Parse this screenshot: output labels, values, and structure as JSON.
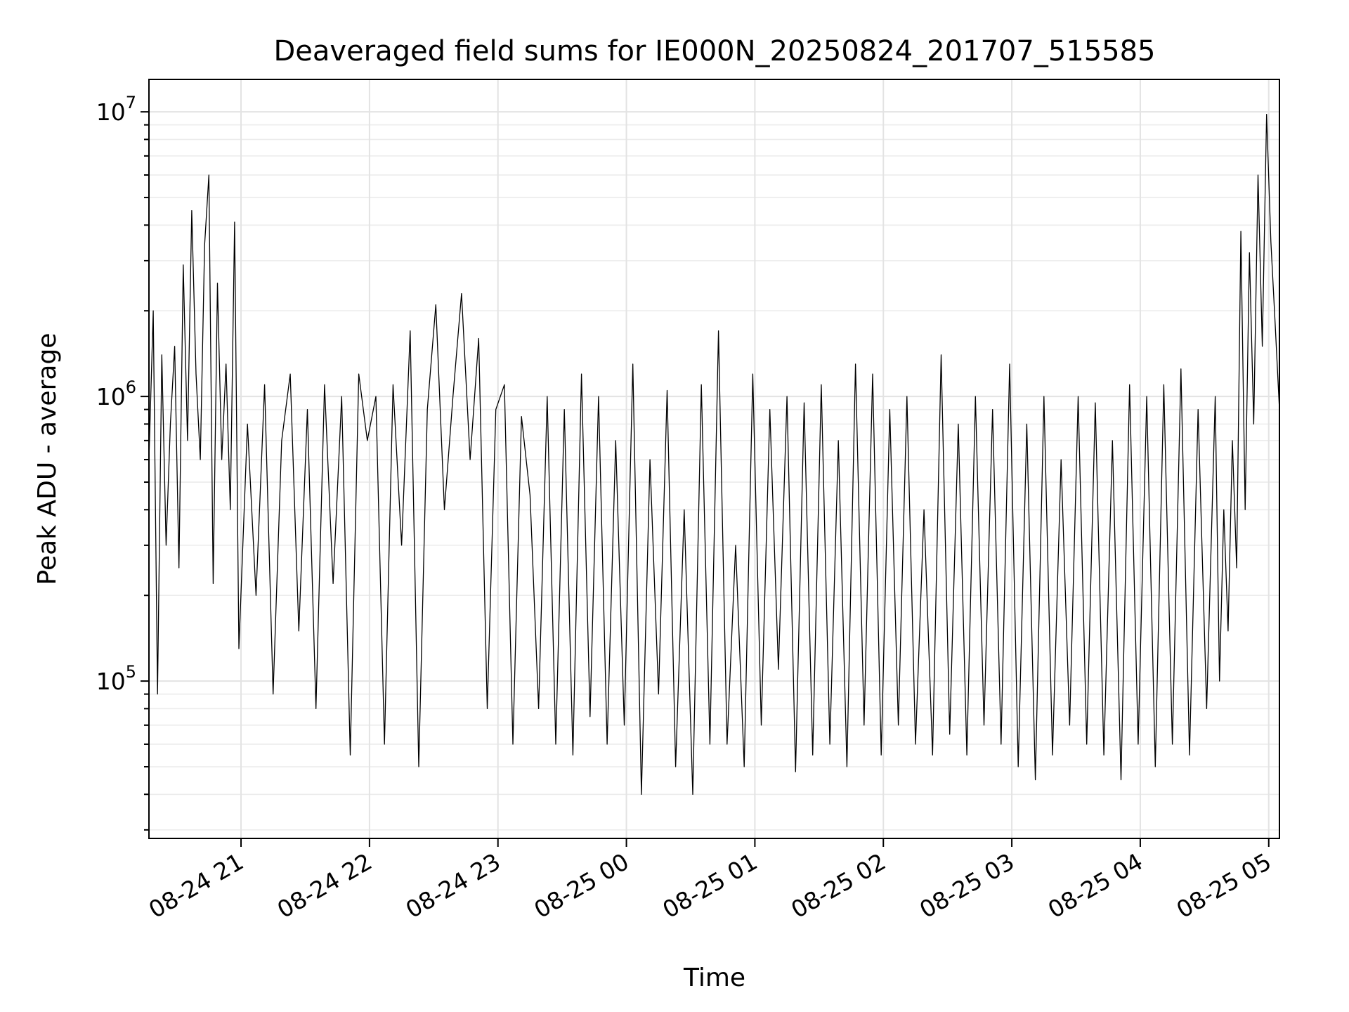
{
  "chart_data": {
    "type": "line",
    "title": "Deaveraged field sums for IE000N_20250824_201707_515585",
    "xlabel": "Time",
    "ylabel": "Peak ADU - average",
    "y_scale": "log",
    "grid": true,
    "line_color": "#000000",
    "xlim": [
      "2025-08-24 20:17",
      "2025-08-25 05:05"
    ],
    "ylim": [
      28000,
      13000000
    ],
    "x_ticks": [
      {
        "value": "2025-08-24 21:00",
        "label": "08-24 21"
      },
      {
        "value": "2025-08-24 22:00",
        "label": "08-24 22"
      },
      {
        "value": "2025-08-24 23:00",
        "label": "08-24 23"
      },
      {
        "value": "2025-08-25 00:00",
        "label": "08-25 00"
      },
      {
        "value": "2025-08-25 01:00",
        "label": "08-25 01"
      },
      {
        "value": "2025-08-25 02:00",
        "label": "08-25 02"
      },
      {
        "value": "2025-08-25 03:00",
        "label": "08-25 03"
      },
      {
        "value": "2025-08-25 04:00",
        "label": "08-25 04"
      },
      {
        "value": "2025-08-25 05:00",
        "label": "08-25 05"
      }
    ],
    "y_ticks": [
      {
        "value": 100000,
        "base": "10",
        "exp": "5"
      },
      {
        "value": 1000000,
        "base": "10",
        "exp": "6"
      },
      {
        "value": 10000000,
        "base": "10",
        "exp": "7"
      }
    ],
    "series": [
      {
        "x": [
          "2025-08-24 20:17",
          "2025-08-24 20:19",
          "2025-08-24 20:21",
          "2025-08-24 20:23",
          "2025-08-24 20:25",
          "2025-08-24 20:27",
          "2025-08-24 20:29",
          "2025-08-24 20:31",
          "2025-08-24 20:33",
          "2025-08-24 20:35",
          "2025-08-24 20:37",
          "2025-08-24 20:39",
          "2025-08-24 20:41",
          "2025-08-24 20:43",
          "2025-08-24 20:45",
          "2025-08-24 20:47",
          "2025-08-24 20:49",
          "2025-08-24 20:51",
          "2025-08-24 20:53",
          "2025-08-24 20:55",
          "2025-08-24 20:57",
          "2025-08-24 20:59",
          "2025-08-24 21:03",
          "2025-08-24 21:07",
          "2025-08-24 21:11",
          "2025-08-24 21:15",
          "2025-08-24 21:19",
          "2025-08-24 21:23",
          "2025-08-24 21:27",
          "2025-08-24 21:31",
          "2025-08-24 21:35",
          "2025-08-24 21:39",
          "2025-08-24 21:43",
          "2025-08-24 21:47",
          "2025-08-24 21:51",
          "2025-08-24 21:55",
          "2025-08-24 21:59",
          "2025-08-24 22:03",
          "2025-08-24 22:07",
          "2025-08-24 22:11",
          "2025-08-24 22:15",
          "2025-08-24 22:19",
          "2025-08-24 22:23",
          "2025-08-24 22:27",
          "2025-08-24 22:31",
          "2025-08-24 22:35",
          "2025-08-24 22:39",
          "2025-08-24 22:43",
          "2025-08-24 22:47",
          "2025-08-24 22:51",
          "2025-08-24 22:55",
          "2025-08-24 22:59",
          "2025-08-24 23:03",
          "2025-08-24 23:07",
          "2025-08-24 23:11",
          "2025-08-24 23:15",
          "2025-08-24 23:19",
          "2025-08-24 23:23",
          "2025-08-24 23:27",
          "2025-08-24 23:31",
          "2025-08-24 23:35",
          "2025-08-24 23:39",
          "2025-08-24 23:43",
          "2025-08-24 23:47",
          "2025-08-24 23:51",
          "2025-08-24 23:55",
          "2025-08-24 23:59",
          "2025-08-25 00:03",
          "2025-08-25 00:07",
          "2025-08-25 00:11",
          "2025-08-25 00:15",
          "2025-08-25 00:19",
          "2025-08-25 00:23",
          "2025-08-25 00:27",
          "2025-08-25 00:31",
          "2025-08-25 00:35",
          "2025-08-25 00:39",
          "2025-08-25 00:43",
          "2025-08-25 00:47",
          "2025-08-25 00:51",
          "2025-08-25 00:55",
          "2025-08-25 00:59",
          "2025-08-25 01:03",
          "2025-08-25 01:07",
          "2025-08-25 01:11",
          "2025-08-25 01:15",
          "2025-08-25 01:19",
          "2025-08-25 01:23",
          "2025-08-25 01:27",
          "2025-08-25 01:31",
          "2025-08-25 01:35",
          "2025-08-25 01:39",
          "2025-08-25 01:43",
          "2025-08-25 01:47",
          "2025-08-25 01:51",
          "2025-08-25 01:55",
          "2025-08-25 01:59",
          "2025-08-25 02:03",
          "2025-08-25 02:07",
          "2025-08-25 02:11",
          "2025-08-25 02:15",
          "2025-08-25 02:19",
          "2025-08-25 02:23",
          "2025-08-25 02:27",
          "2025-08-25 02:31",
          "2025-08-25 02:35",
          "2025-08-25 02:39",
          "2025-08-25 02:43",
          "2025-08-25 02:47",
          "2025-08-25 02:51",
          "2025-08-25 02:55",
          "2025-08-25 02:59",
          "2025-08-25 03:03",
          "2025-08-25 03:07",
          "2025-08-25 03:11",
          "2025-08-25 03:15",
          "2025-08-25 03:19",
          "2025-08-25 03:23",
          "2025-08-25 03:27",
          "2025-08-25 03:31",
          "2025-08-25 03:35",
          "2025-08-25 03:39",
          "2025-08-25 03:43",
          "2025-08-25 03:47",
          "2025-08-25 03:51",
          "2025-08-25 03:55",
          "2025-08-25 03:59",
          "2025-08-25 04:03",
          "2025-08-25 04:07",
          "2025-08-25 04:11",
          "2025-08-25 04:15",
          "2025-08-25 04:19",
          "2025-08-25 04:23",
          "2025-08-25 04:27",
          "2025-08-25 04:31",
          "2025-08-25 04:35",
          "2025-08-25 04:37",
          "2025-08-25 04:39",
          "2025-08-25 04:41",
          "2025-08-25 04:43",
          "2025-08-25 04:45",
          "2025-08-25 04:47",
          "2025-08-25 04:49",
          "2025-08-25 04:51",
          "2025-08-25 04:53",
          "2025-08-25 04:55",
          "2025-08-25 04:57",
          "2025-08-25 04:59",
          "2025-08-25 05:01",
          "2025-08-25 05:03",
          "2025-08-25 05:05"
        ],
        "y": [
          600000,
          2000000,
          90000,
          1400000,
          300000,
          800000,
          1500000,
          250000,
          2900000,
          700000,
          4500000,
          1200000,
          600000,
          3400000,
          6000000,
          220000,
          2500000,
          600000,
          1300000,
          400000,
          4100000,
          130000,
          800000,
          200000,
          1100000,
          90000,
          700000,
          1200000,
          150000,
          900000,
          80000,
          1100000,
          220000,
          1000000,
          55000,
          1200000,
          700000,
          1000000,
          60000,
          1100000,
          300000,
          1700000,
          50000,
          900000,
          2100000,
          400000,
          1000000,
          2300000,
          600000,
          1600000,
          80000,
          900000,
          1100000,
          60000,
          850000,
          450000,
          80000,
          1000000,
          60000,
          900000,
          55000,
          1200000,
          75000,
          1000000,
          60000,
          700000,
          70000,
          1300000,
          40000,
          600000,
          90000,
          1050000,
          50000,
          400000,
          40000,
          1100000,
          60000,
          1700000,
          60000,
          300000,
          50000,
          1200000,
          70000,
          900000,
          110000,
          1000000,
          48000,
          950000,
          55000,
          1100000,
          60000,
          700000,
          50000,
          1300000,
          70000,
          1200000,
          55000,
          900000,
          70000,
          1000000,
          60000,
          400000,
          55000,
          1400000,
          65000,
          800000,
          55000,
          1000000,
          70000,
          900000,
          60000,
          1300000,
          50000,
          800000,
          45000,
          1000000,
          55000,
          600000,
          70000,
          1000000,
          60000,
          950000,
          55000,
          700000,
          45000,
          1100000,
          60000,
          1000000,
          50000,
          1100000,
          60000,
          1250000,
          55000,
          900000,
          80000,
          1000000,
          100000,
          400000,
          150000,
          700000,
          250000,
          3800000,
          400000,
          3200000,
          800000,
          6000000,
          1500000,
          9800000,
          3500000,
          1800000,
          900000
        ]
      }
    ]
  }
}
